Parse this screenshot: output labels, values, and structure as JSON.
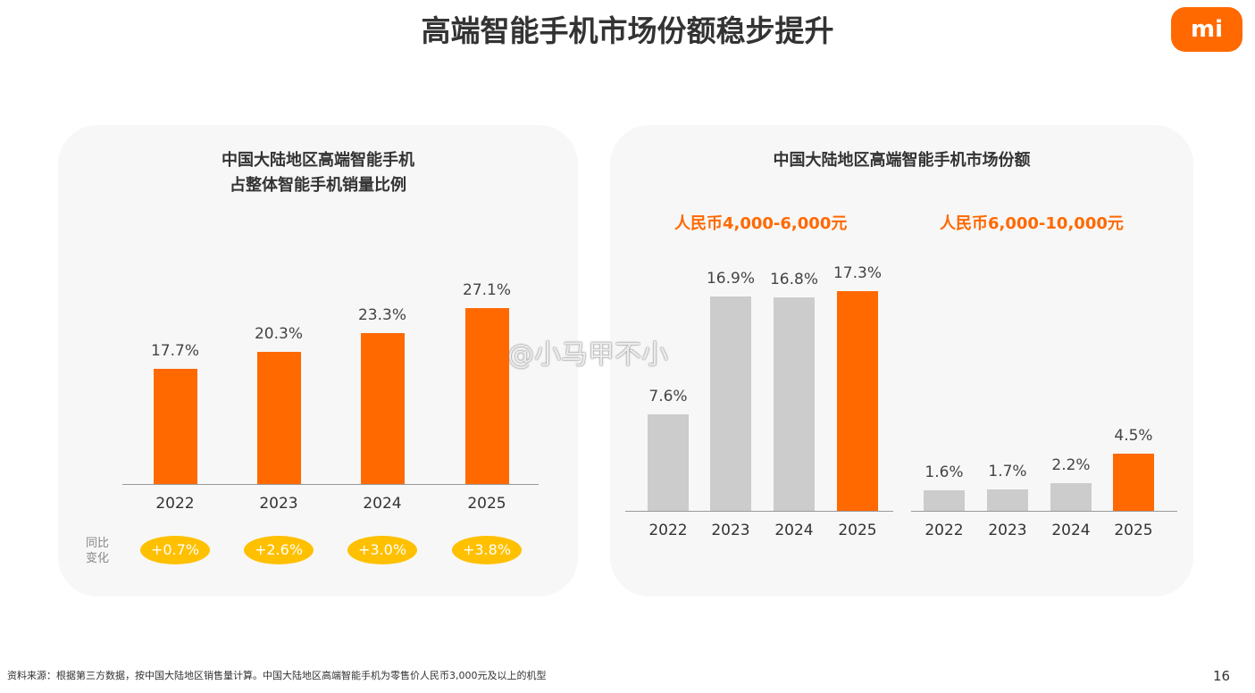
{
  "title": "高端智能手机市场份额稳步提升",
  "logo": "mi",
  "watermark": "@小马甲不小",
  "footer": "资料来源：根据第三方数据，按中国大陆地区销售量计算。中国大陆地区高端智能手机为零售价人民币3,000元及以上的机型",
  "page_number": "16",
  "yoy_label": "同比\n变化",
  "colors": {
    "highlight": "#ff6900",
    "base": "#cccccc",
    "pill": "#ffc000"
  },
  "chart_data": [
    {
      "type": "bar",
      "title": "中国大陆地区高端智能手机\n占整体智能手机销量比例",
      "categories": [
        "2022",
        "2023",
        "2024",
        "2025"
      ],
      "values": [
        17.7,
        20.3,
        23.3,
        27.1
      ],
      "labels": [
        "17.7%",
        "20.3%",
        "23.3%",
        "27.1%"
      ],
      "bar_colors": [
        "#ff6900",
        "#ff6900",
        "#ff6900",
        "#ff6900"
      ],
      "yoy_change": [
        "+0.7%",
        "+2.6%",
        "+3.0%",
        "+3.8%"
      ],
      "unit": "%"
    },
    {
      "type": "bar",
      "title": "中国大陆地区高端智能手机市场份额",
      "groups": [
        {
          "name": "人民币4,000-6,000元",
          "categories": [
            "2022",
            "2023",
            "2024",
            "2025"
          ],
          "values": [
            7.6,
            16.9,
            16.8,
            17.3
          ],
          "labels": [
            "7.6%",
            "16.9%",
            "16.8%",
            "17.3%"
          ],
          "bar_colors": [
            "#cccccc",
            "#cccccc",
            "#cccccc",
            "#ff6900"
          ]
        },
        {
          "name": "人民币6,000-10,000元",
          "categories": [
            "2022",
            "2023",
            "2024",
            "2025"
          ],
          "values": [
            1.6,
            1.7,
            2.2,
            4.5
          ],
          "labels": [
            "1.6%",
            "1.7%",
            "2.2%",
            "4.5%"
          ],
          "bar_colors": [
            "#cccccc",
            "#cccccc",
            "#cccccc",
            "#ff6900"
          ]
        }
      ],
      "unit": "%"
    }
  ]
}
